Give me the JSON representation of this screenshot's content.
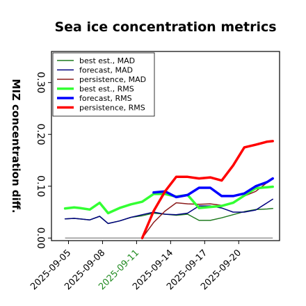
{
  "chart_data": {
    "type": "line",
    "title": "Sea ice concentration metrics",
    "xlabel": "",
    "ylabel": "MIZ concentration diff.",
    "ylim": [
      -0.005,
      0.36
    ],
    "xlim": [
      0,
      13.4
    ],
    "grid": false,
    "legend_position": "top-left",
    "y_ticks": [
      "0.00",
      "0.10",
      "0.20",
      "0.30"
    ],
    "y_tick_values": [
      0.0,
      0.1,
      0.2,
      0.3
    ],
    "x_ticks": [
      {
        "label": "2025-09-05",
        "x": 1,
        "color": "#000000"
      },
      {
        "label": "2025-09-08",
        "x": 3,
        "color": "#000000"
      },
      {
        "label": "2025-09-11",
        "x": 5,
        "color": "#228b22"
      },
      {
        "label": "2025-09-14",
        "x": 7,
        "color": "#000000"
      },
      {
        "label": "2025-09-17",
        "x": 9,
        "color": "#000000"
      },
      {
        "label": "2025-09-20",
        "x": 11,
        "color": "#000000"
      }
    ],
    "x": [
      0.8,
      1.33,
      1.67,
      2.25,
      2.83,
      3.33,
      4.0,
      4.67,
      5.33,
      6.0,
      6.67,
      7.33,
      8.0,
      8.67,
      9.33,
      10.0,
      10.67,
      11.33,
      12.0,
      12.67,
      13.0
    ],
    "series": [
      {
        "name": "best est., MAD",
        "color": "#1f7a1f",
        "width": 1.5,
        "values": [
          0.037,
          0.038,
          0.037,
          0.035,
          0.042,
          0.028,
          0.033,
          0.04,
          0.043,
          0.048,
          0.046,
          0.044,
          0.046,
          0.034,
          0.034,
          0.039,
          0.045,
          0.051,
          0.055,
          0.056,
          0.057
        ]
      },
      {
        "name": "forecast,  MAD",
        "color": "#000080",
        "width": 1.5,
        "values": [
          0.037,
          0.038,
          0.037,
          0.035,
          0.042,
          0.028,
          0.033,
          0.04,
          0.045,
          0.05,
          0.046,
          0.045,
          0.048,
          0.062,
          0.062,
          0.058,
          0.05,
          0.05,
          0.054,
          0.068,
          0.075
        ]
      },
      {
        "name": "persistence, MAD",
        "color": "#8b1a1a",
        "width": 1.5,
        "values": [
          null,
          null,
          null,
          null,
          null,
          null,
          null,
          null,
          0.0,
          0.03,
          0.052,
          0.068,
          0.066,
          0.065,
          0.066,
          0.063,
          0.068,
          0.081,
          0.09,
          0.107,
          0.115
        ]
      },
      {
        "name": "best est., RMS",
        "color": "#33ff33",
        "width": 3.5,
        "values": [
          0.057,
          0.059,
          0.058,
          0.055,
          0.068,
          0.048,
          0.058,
          0.065,
          0.07,
          0.085,
          0.085,
          0.08,
          0.083,
          0.058,
          0.06,
          0.062,
          0.068,
          0.082,
          0.096,
          0.098,
          0.099
        ]
      },
      {
        "name": "forecast,  RMS",
        "color": "#0000ff",
        "width": 3.5,
        "values": [
          null,
          null,
          null,
          null,
          null,
          null,
          null,
          null,
          null,
          0.088,
          0.09,
          0.079,
          0.083,
          0.097,
          0.097,
          0.081,
          0.081,
          0.086,
          0.1,
          0.108,
          0.115
        ]
      },
      {
        "name": "persistence, RMS",
        "color": "#ff0000",
        "width": 3.5,
        "values": [
          null,
          null,
          null,
          null,
          null,
          null,
          null,
          null,
          0.0,
          0.052,
          0.09,
          0.118,
          0.118,
          0.115,
          0.117,
          0.111,
          0.14,
          0.175,
          0.18,
          0.186,
          0.187
        ]
      }
    ]
  }
}
